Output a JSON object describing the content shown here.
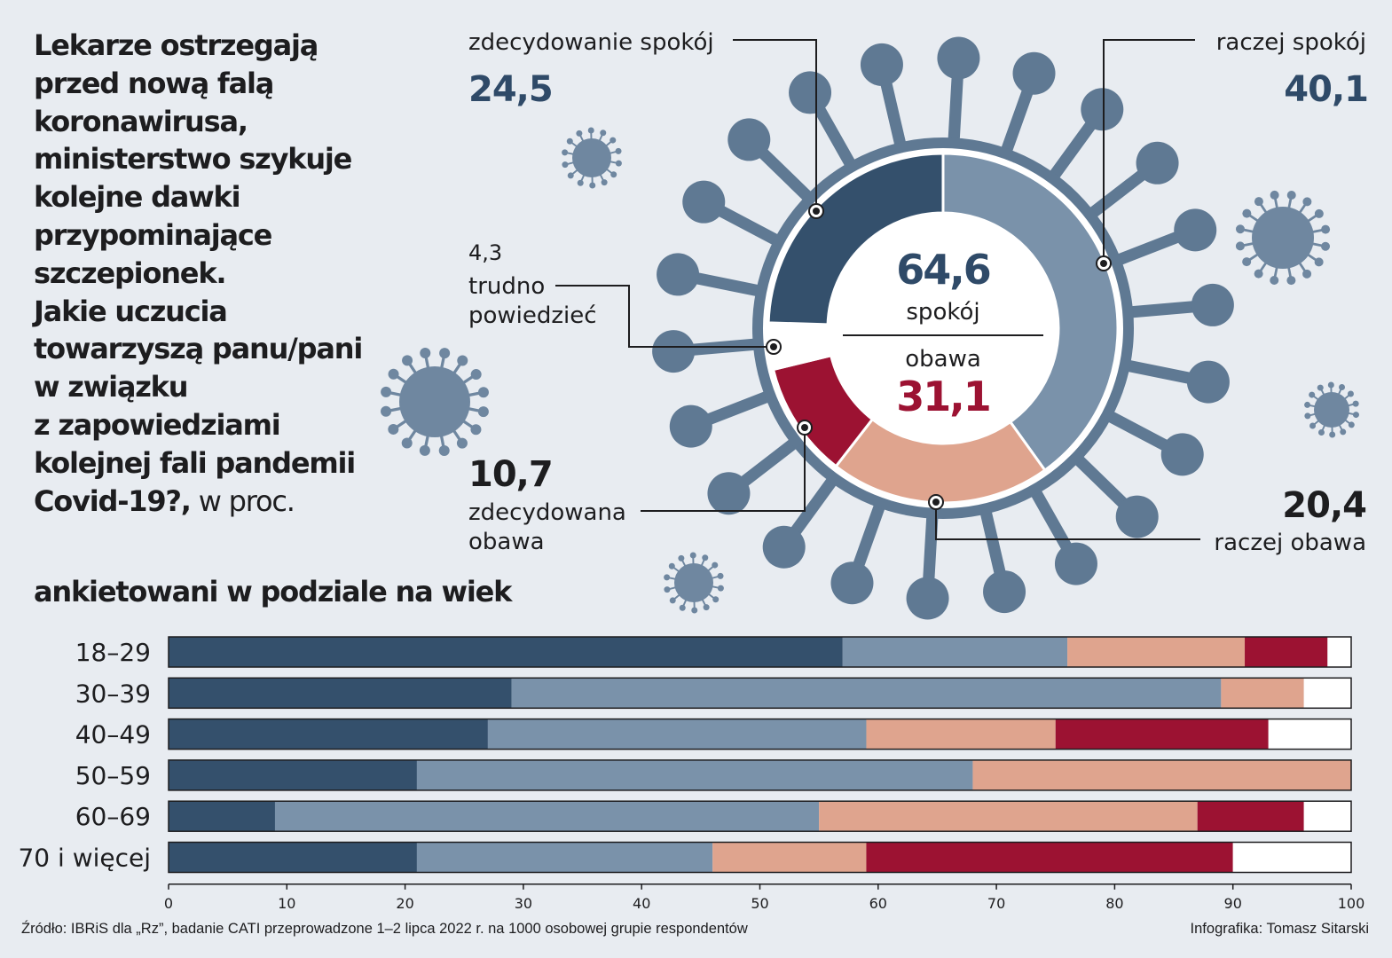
{
  "question": {
    "text": "Lekarze ostrzegają\nprzed nową falą\nkoronawirusa,\nministerstwo szykuje\nkolejne dawki\nprzypominające\nszczepionek.\nJakie uczucia\ntowarzyszą panu/pani\nw związku\nz zapowiedziami\nkolejnej fali pandemii\nCovid-19?,",
    "unit": " w proc."
  },
  "colors": {
    "zdecydowanie_spokoj": "#34506c",
    "raczej_spokoj": "#7a92aa",
    "raczej_obawa": "#dfa48e",
    "zdecydowana_obawa": "#9c1232",
    "trudno_powiedziec": "#ffffff",
    "calm_text": "#2f4a68",
    "fear_text": "#9c1232"
  },
  "labels": {
    "zdecydowanie_spokoj": "zdecydowanie spokój",
    "raczej_spokoj": "raczej spokój",
    "trudno_line1": "trudno",
    "trudno_line2": "powiedzieć",
    "zdecydowana_obawa_line1": "zdecydowana",
    "zdecydowana_obawa_line2": "obawa",
    "raczej_obawa": "raczej obawa"
  },
  "values_text": {
    "zdecydowanie_spokoj": "24,5",
    "raczej_spokoj": "40,1",
    "trudno_powiedziec": "4,3",
    "zdecydowana_obawa": "10,7",
    "raczej_obawa": "20,4"
  },
  "center": {
    "calm_value": "64,6",
    "calm_label": "spokój",
    "fear_label": "obawa",
    "fear_value": "31,1"
  },
  "age_section_title": "ankietowani w podziale na wiek",
  "footer": {
    "source": "Źródło: IBRiS dla „Rz”, badanie CATI przeprowadzone 1–2 lipca 2022 r. na 1000 osobowej grupie respondentów",
    "credit": "Infografika: Tomasz Sitarski"
  },
  "chart_data": [
    {
      "type": "pie",
      "variant": "donut",
      "categories": [
        "zdecydowanie spokój",
        "raczej spokój",
        "raczej obawa",
        "zdecydowana obawa",
        "trudno powiedzieć"
      ],
      "values": [
        24.5,
        40.1,
        20.4,
        10.7,
        4.3
      ],
      "center_totals": {
        "spokój": 64.6,
        "obawa": 31.1
      }
    },
    {
      "type": "bar",
      "orientation": "horizontal",
      "stacked": true,
      "title": "ankietowani w podziale na wiek",
      "categories": [
        "18–29",
        "30–39",
        "40–49",
        "50–59",
        "60–69",
        "70 i więcej"
      ],
      "series": [
        {
          "key": "zdecydowanie_spokoj",
          "values": [
            57,
            29,
            27,
            21,
            9,
            21
          ]
        },
        {
          "key": "raczej_spokoj",
          "values": [
            19,
            60,
            32,
            47,
            46,
            25
          ]
        },
        {
          "key": "raczej_obawa",
          "values": [
            15,
            7,
            16,
            32,
            32,
            13
          ]
        },
        {
          "key": "zdecydowana_obawa",
          "values": [
            7,
            0,
            18,
            0,
            9,
            31
          ]
        },
        {
          "key": "trudno_powiedziec",
          "values": [
            2,
            4,
            7,
            0,
            4,
            10
          ]
        }
      ],
      "xlim": [
        0,
        100
      ],
      "xticks": [
        0,
        10,
        20,
        30,
        40,
        50,
        60,
        70,
        80,
        90,
        100
      ]
    }
  ]
}
